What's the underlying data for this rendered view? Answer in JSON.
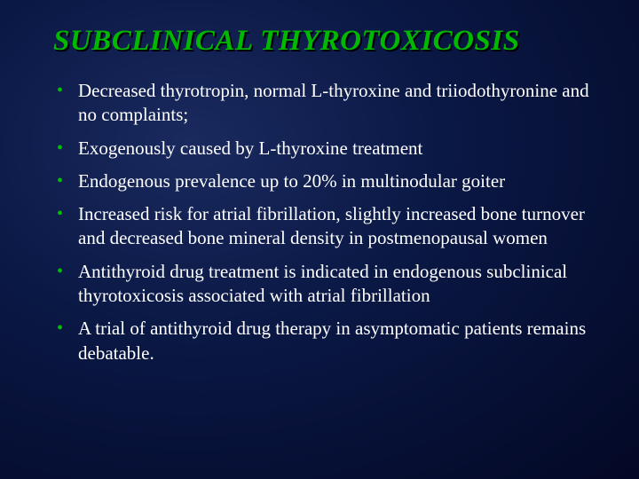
{
  "slide": {
    "title": "SUBCLINICAL THYROTOXICOSIS",
    "title_color": "#00b800",
    "title_shadow_color": "#000000",
    "title_fontsize": 33,
    "title_italic": true,
    "title_bold": true,
    "background": {
      "type": "radial-gradient",
      "center": "30% 30%",
      "stops": [
        "#1a2a5e",
        "#0a1845",
        "#030825"
      ]
    },
    "bullet_color": "#00c000",
    "body_text_color": "#ffffff",
    "body_fontsize": 21,
    "font_family": "Times New Roman",
    "bullets": [
      "Decreased thyrotropin, normal L-thyroxine and triiodothyronine and no complaints;",
      "Exogenously caused by L-thyroxine treatment",
      "Endogenous prevalence up to 20% in multinodular goiter",
      "Increased risk for atrial fibrillation, slightly increased bone turnover and decreased bone mineral density in postmenopausal women",
      "Antithyroid drug treatment is indicated in endogenous subclinical thyrotoxicosis associated with atrial fibrillation",
      "A trial of antithyroid drug therapy in asymptomatic patients remains debatable."
    ]
  }
}
